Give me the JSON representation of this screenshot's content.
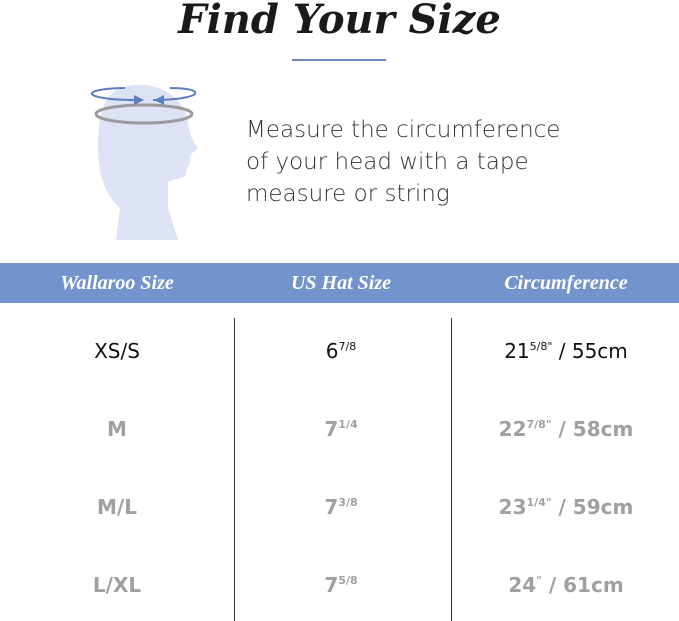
{
  "title": "Find Your Size",
  "instruction_lines": [
    "Measure the circumference",
    "of your head with a tape",
    "measure or string"
  ],
  "colors": {
    "header_band": "#7393cc",
    "head_silhouette": "#dde3f4",
    "arrow": "#5b7fbf",
    "tape": "#9a9a9a"
  },
  "icon": "head-measure-icon",
  "table": {
    "headers": [
      "Wallaroo Size",
      "US Hat Size",
      "Circumference"
    ],
    "rows": [
      {
        "size": "XS/S",
        "hat_whole": "6",
        "hat_frac": "7/8",
        "circ_whole": "21",
        "circ_frac": "5/8\"",
        "circ_cm": " / 55cm"
      },
      {
        "size": "M",
        "hat_whole": "7",
        "hat_frac": "1/4",
        "circ_whole": "22",
        "circ_frac": "7/8\"",
        "circ_cm": " / 58cm"
      },
      {
        "size": "M/L",
        "hat_whole": "7",
        "hat_frac": "3/8",
        "circ_whole": "23",
        "circ_frac": "1/4\"",
        "circ_cm": " / 59cm"
      },
      {
        "size": "L/XL",
        "hat_whole": "7",
        "hat_frac": "5/8",
        "circ_whole": "24",
        "circ_frac": "\"",
        "circ_cm": " / 61cm"
      }
    ]
  }
}
